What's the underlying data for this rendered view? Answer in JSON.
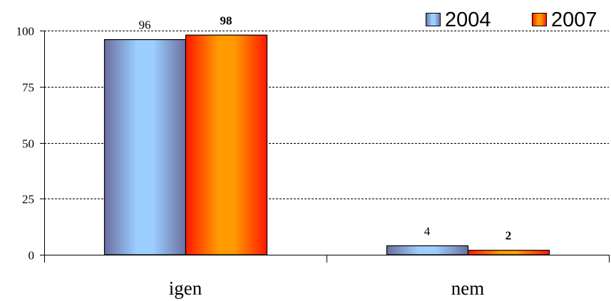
{
  "chart_data": {
    "type": "bar",
    "categories": [
      "igen",
      "nem"
    ],
    "series": [
      {
        "name": "2004",
        "values": [
          96,
          4
        ],
        "label_bold": false,
        "colors": {
          "edge": "#6A6FA0",
          "mid": "#9CCFFF"
        }
      },
      {
        "name": "2007",
        "values": [
          98,
          2
        ],
        "label_bold": true,
        "colors": {
          "edge": "#FF1800",
          "mid": "#FF9A00"
        }
      }
    ],
    "data_labels": [
      [
        "96",
        "4"
      ],
      [
        "98",
        "2"
      ]
    ],
    "yticks": [
      "0",
      "25",
      "50",
      "75",
      "100"
    ],
    "ylim": [
      0,
      100
    ],
    "grid": true,
    "grid_style": "dashed",
    "legend_position": "top-right"
  }
}
